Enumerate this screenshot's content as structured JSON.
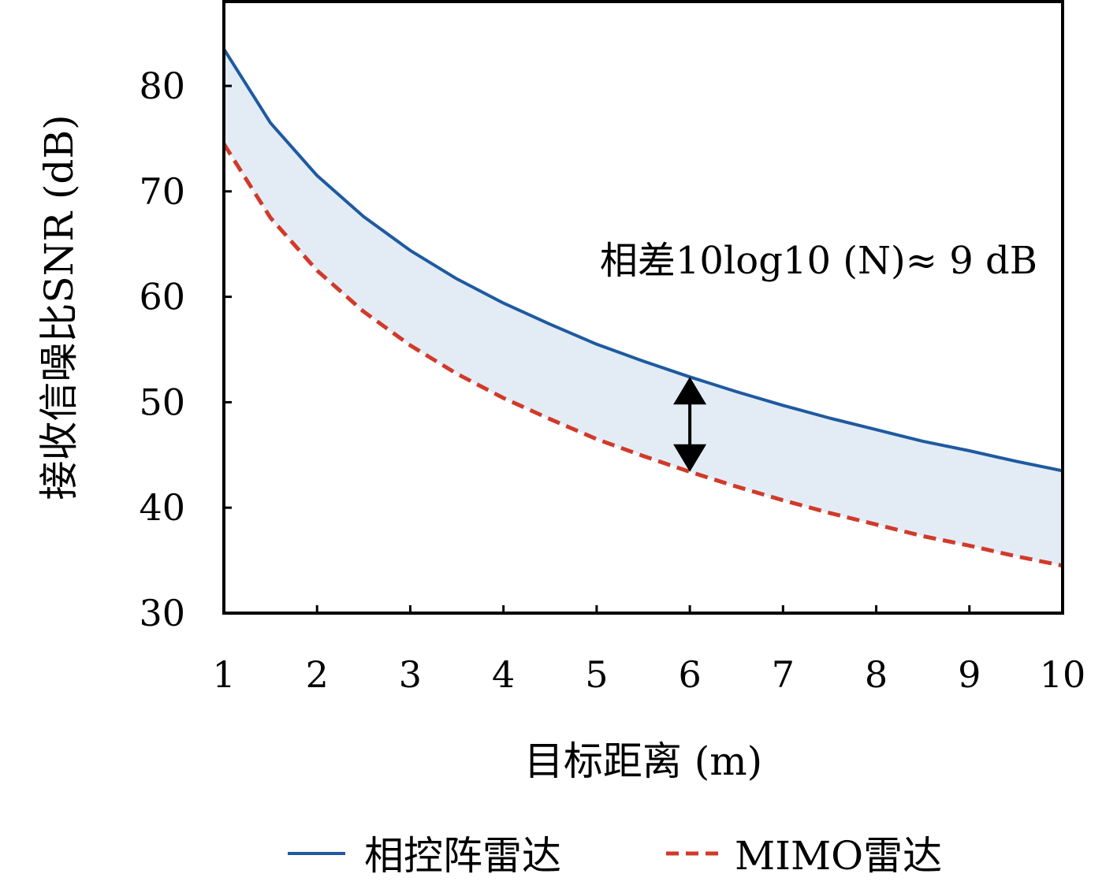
{
  "chart_data": {
    "type": "line",
    "xlabel": "目标距离 (m)",
    "ylabel": "接收信噪比SNR (dB)",
    "xlim": [
      1,
      10
    ],
    "ylim": [
      30,
      88
    ],
    "xticks": [
      1,
      2,
      3,
      4,
      5,
      6,
      7,
      8,
      9,
      10
    ],
    "yticks": [
      30,
      40,
      50,
      60,
      70,
      80
    ],
    "x": [
      1,
      1.5,
      2,
      2.5,
      3,
      3.5,
      4,
      4.5,
      5,
      5.5,
      6,
      6.5,
      7,
      7.5,
      8,
      8.5,
      9,
      9.5,
      10
    ],
    "series": [
      {
        "name": "相控阵雷达",
        "color": "#1f5aa0",
        "style": "solid",
        "values": [
          83.5,
          76.5,
          71.5,
          67.6,
          64.4,
          61.7,
          59.4,
          57.4,
          55.5,
          53.9,
          52.4,
          51.0,
          49.7,
          48.5,
          47.4,
          46.3,
          45.4,
          44.4,
          43.5
        ]
      },
      {
        "name": "MIMO雷达",
        "color": "#d13a2a",
        "style": "dashed",
        "values": [
          74.5,
          67.5,
          62.5,
          58.6,
          55.4,
          52.7,
          50.4,
          48.4,
          46.5,
          44.9,
          43.4,
          42.0,
          40.7,
          39.5,
          38.4,
          37.3,
          36.4,
          35.4,
          34.5
        ]
      }
    ],
    "fill_between": {
      "color": "#e3ecf5"
    },
    "annotation": {
      "text": "相差10log10 (N)≈ 9 dB",
      "arrow_x": 6
    },
    "grid": false,
    "legend_position": "bottom-center"
  }
}
